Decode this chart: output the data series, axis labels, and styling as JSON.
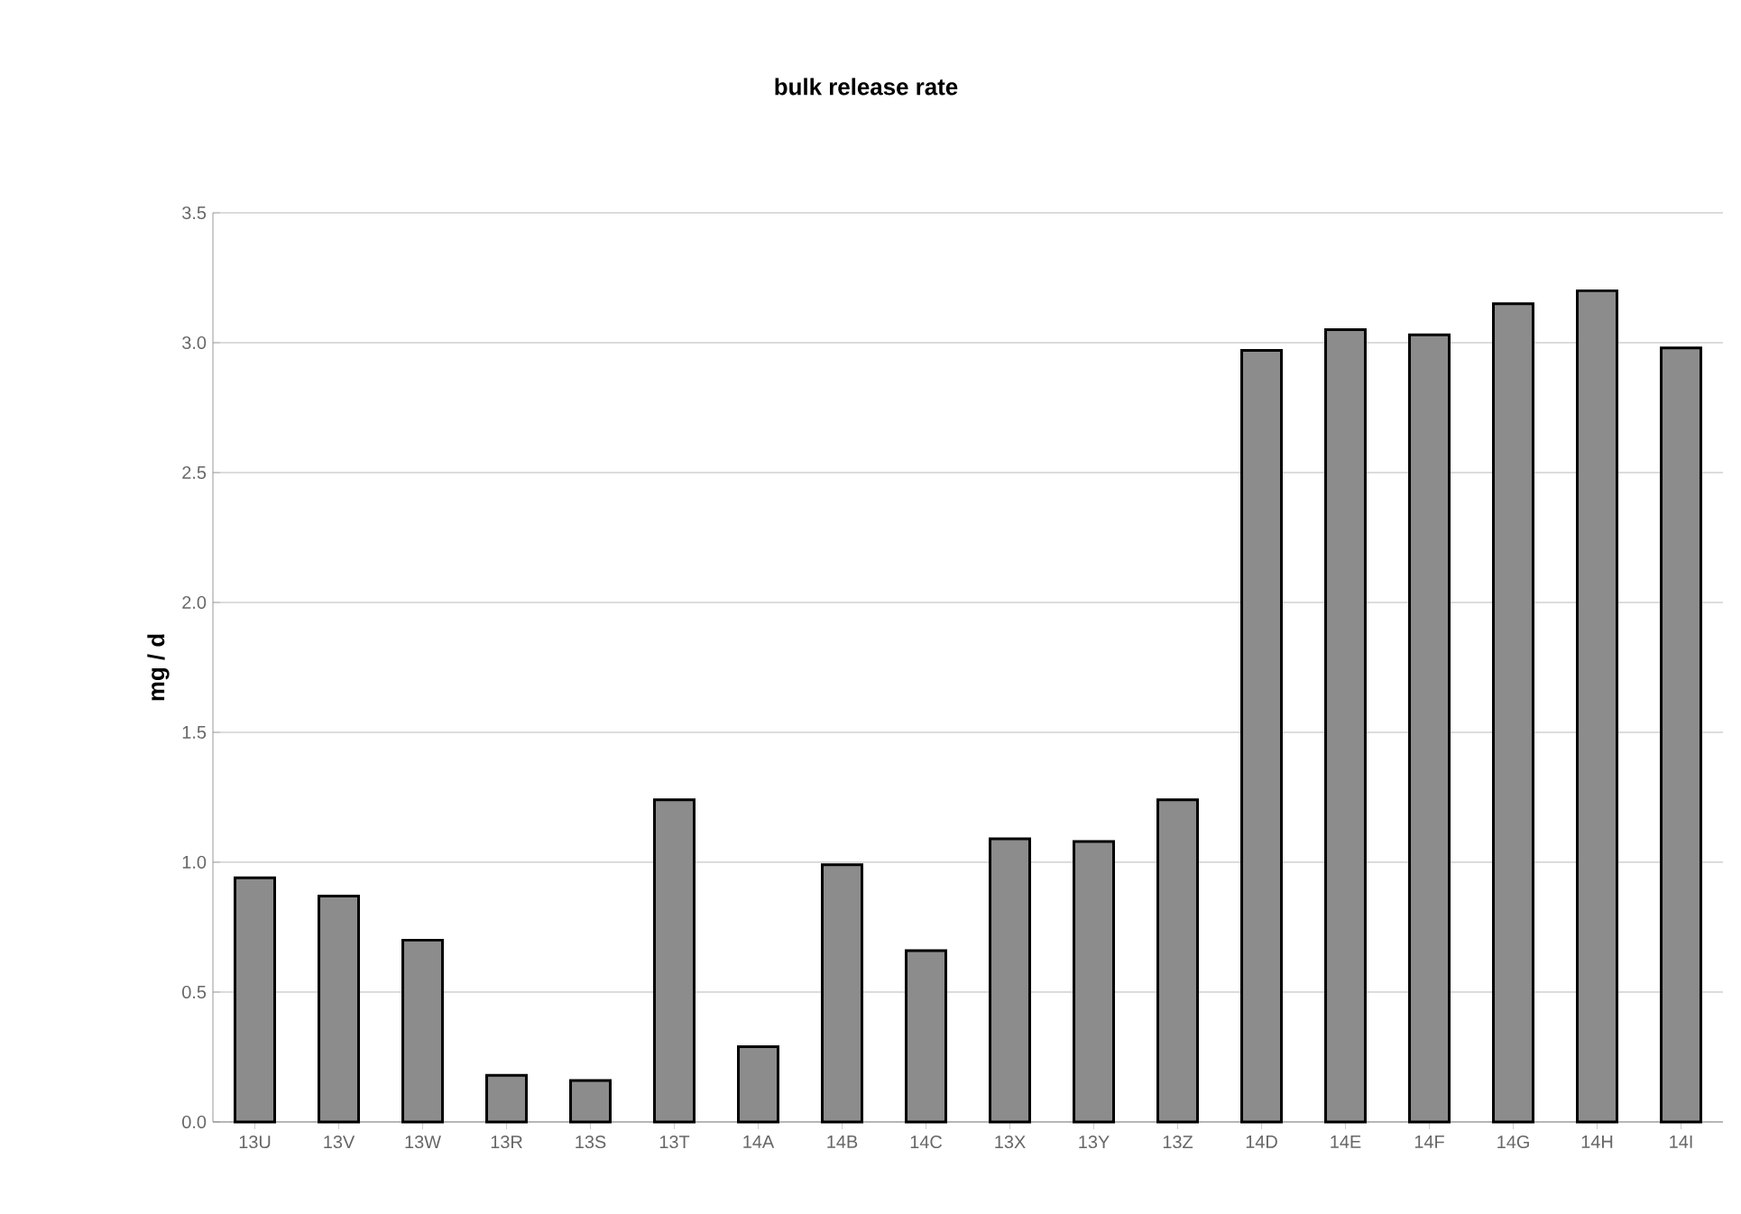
{
  "chart_data": {
    "type": "bar",
    "title": "bulk release rate",
    "ylabel": "mg / d",
    "categories": [
      "13U",
      "13V",
      "13W",
      "13R",
      "13S",
      "13T",
      "14A",
      "14B",
      "14C",
      "13X",
      "13Y",
      "13Z",
      "14D",
      "14E",
      "14F",
      "14G",
      "14H",
      "14I"
    ],
    "values": [
      0.94,
      0.87,
      0.7,
      0.18,
      0.16,
      1.24,
      0.29,
      0.99,
      0.66,
      1.09,
      1.08,
      1.24,
      2.97,
      3.05,
      3.03,
      3.15,
      3.2,
      2.98
    ],
    "color": "#8c8c8c",
    "ylim": [
      0,
      3.5
    ],
    "yticks": [
      {
        "value": 0,
        "label": "0.0"
      },
      {
        "value": 0.5,
        "label": "0.5"
      },
      {
        "value": 1,
        "label": "1.0"
      },
      {
        "value": 1.5,
        "label": "1.5"
      },
      {
        "value": 2,
        "label": "2.0"
      },
      {
        "value": 2.5,
        "label": "2.5"
      },
      {
        "value": 3,
        "label": "3.0"
      },
      {
        "value": 3.5,
        "label": "3.5"
      }
    ],
    "grid": "y"
  }
}
